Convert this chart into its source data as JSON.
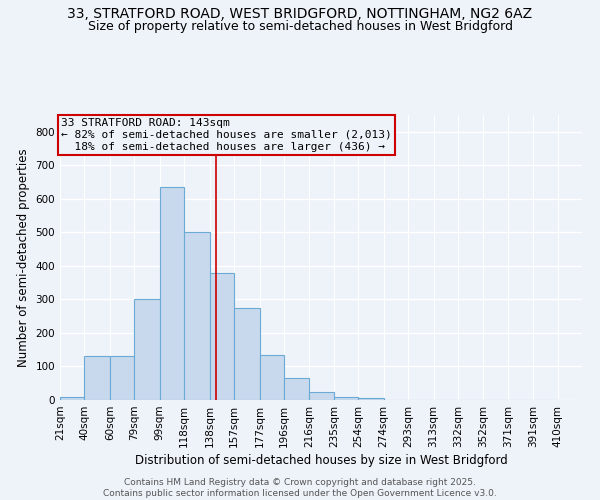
{
  "title1": "33, STRATFORD ROAD, WEST BRIDGFORD, NOTTINGHAM, NG2 6AZ",
  "title2": "Size of property relative to semi-detached houses in West Bridgford",
  "xlabel": "Distribution of semi-detached houses by size in West Bridgford",
  "ylabel": "Number of semi-detached properties",
  "bin_labels": [
    "21sqm",
    "40sqm",
    "60sqm",
    "79sqm",
    "99sqm",
    "118sqm",
    "138sqm",
    "157sqm",
    "177sqm",
    "196sqm",
    "216sqm",
    "235sqm",
    "254sqm",
    "274sqm",
    "293sqm",
    "313sqm",
    "332sqm",
    "352sqm",
    "371sqm",
    "391sqm",
    "410sqm"
  ],
  "bin_edges": [
    21,
    40,
    60,
    79,
    99,
    118,
    138,
    157,
    177,
    196,
    216,
    235,
    254,
    274,
    293,
    313,
    332,
    352,
    371,
    391,
    410
  ],
  "bar_heights": [
    8,
    130,
    130,
    300,
    635,
    500,
    380,
    275,
    135,
    65,
    25,
    10,
    5,
    0,
    0,
    0,
    0,
    0,
    0,
    0
  ],
  "bar_color": "#c8d9ee",
  "bar_edge_color": "#6aaad4",
  "property_size": 143,
  "vline_color": "#cc0000",
  "annotation_text": "33 STRATFORD ROAD: 143sqm\n← 82% of semi-detached houses are smaller (2,013)\n  18% of semi-detached houses are larger (436) →",
  "annotation_box_color": "#cc0000",
  "ylim": [
    0,
    850
  ],
  "yticks": [
    0,
    100,
    200,
    300,
    400,
    500,
    600,
    700,
    800
  ],
  "footer_line1": "Contains HM Land Registry data © Crown copyright and database right 2025.",
  "footer_line2": "Contains public sector information licensed under the Open Government Licence v3.0.",
  "bg_color": "#eef2f9",
  "grid_color": "#ffffff",
  "title_fontsize": 10,
  "subtitle_fontsize": 9,
  "axis_label_fontsize": 8.5,
  "tick_fontsize": 7.5,
  "annotation_fontsize": 8,
  "footer_fontsize": 6.5
}
